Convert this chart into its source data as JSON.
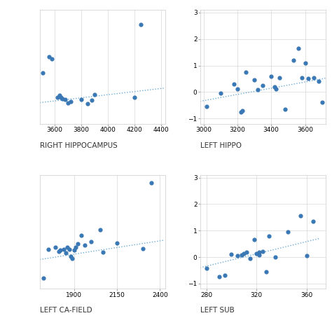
{
  "top_left": {
    "xlabel": "RIGHT HIPPOCAMPUS",
    "scatter_x": [
      3510,
      3560,
      3580,
      3620,
      3640,
      3650,
      3660,
      3680,
      3700,
      3720,
      3800,
      3850,
      3900,
      3880,
      4200,
      4250
    ],
    "scatter_y": [
      1.15,
      1.55,
      1.5,
      0.55,
      0.6,
      0.55,
      0.52,
      0.5,
      0.42,
      0.45,
      0.5,
      0.4,
      0.62,
      0.48,
      0.55,
      2.35
    ],
    "trend_x": [
      3490,
      4430
    ],
    "trend_y": [
      0.42,
      0.78
    ],
    "xlim": [
      3490,
      4430
    ],
    "xticks": [
      3600,
      3800,
      4000,
      4200,
      4400
    ],
    "ylim": [
      -0.1,
      2.7
    ],
    "yticks": []
  },
  "top_right": {
    "xlabel": "LEFT HIPPO",
    "scatter_x": [
      3020,
      3100,
      3180,
      3200,
      3220,
      3230,
      3250,
      3300,
      3320,
      3350,
      3400,
      3420,
      3430,
      3450,
      3480,
      3530,
      3560,
      3580,
      3600,
      3620,
      3650,
      3680,
      3700
    ],
    "scatter_y": [
      -0.55,
      -0.05,
      0.3,
      0.12,
      -0.75,
      -0.7,
      0.75,
      0.45,
      0.1,
      0.25,
      0.6,
      0.2,
      0.12,
      0.55,
      -0.65,
      1.2,
      1.65,
      0.55,
      1.1,
      0.5,
      0.55,
      0.42,
      -0.4
    ],
    "trend_x": [
      2980,
      3720
    ],
    "trend_y": [
      -0.35,
      0.52
    ],
    "xlim": [
      2980,
      3720
    ],
    "xticks": [
      3000,
      3200,
      3400,
      3600
    ],
    "ylim": [
      -1.2,
      3.1
    ],
    "yticks": [
      -1.0,
      0.0,
      1.0,
      2.0,
      3.0
    ]
  },
  "bottom_left": {
    "xlabel": "LEFT CA-FIELD",
    "scatter_x": [
      1720,
      1750,
      1790,
      1810,
      1820,
      1840,
      1850,
      1860,
      1870,
      1880,
      1890,
      1900,
      1910,
      1920,
      1940,
      1960,
      2000,
      2050,
      2070,
      2150,
      2300,
      2350
    ],
    "scatter_y": [
      -0.55,
      0.42,
      0.48,
      0.35,
      0.4,
      0.42,
      0.3,
      0.5,
      0.42,
      0.18,
      0.12,
      0.4,
      0.5,
      0.6,
      0.88,
      0.55,
      0.68,
      1.08,
      0.32,
      0.62,
      0.45,
      2.65
    ],
    "trend_x": [
      1700,
      2420
    ],
    "trend_y": [
      0.08,
      0.72
    ],
    "xlim": [
      1700,
      2430
    ],
    "xticks": [
      1900,
      2150,
      2400
    ],
    "ylim": [
      -0.9,
      2.9
    ],
    "yticks": []
  },
  "bottom_right": {
    "xlabel": "LEFT SUB",
    "scatter_x": [
      280,
      290,
      295,
      300,
      305,
      308,
      310,
      312,
      315,
      318,
      320,
      322,
      322,
      325,
      328,
      330,
      335,
      345,
      355,
      360,
      365
    ],
    "scatter_y": [
      -0.42,
      -0.75,
      -0.68,
      0.1,
      0.05,
      0.08,
      0.12,
      0.18,
      -0.05,
      0.65,
      0.12,
      0.08,
      0.18,
      0.2,
      -0.55,
      0.8,
      0.0,
      0.95,
      1.55,
      0.05,
      1.35
    ],
    "trend_x": [
      275,
      370
    ],
    "trend_y": [
      -0.4,
      0.7
    ],
    "xlim": [
      275,
      375
    ],
    "xticks": [
      280,
      320,
      360
    ],
    "ylim": [
      -1.2,
      3.1
    ],
    "yticks": [
      -1.0,
      0.0,
      1.0,
      2.0,
      3.0
    ]
  },
  "dot_color": "#3a78b5",
  "line_color": "#6aaad4",
  "bg_color": "#ffffff",
  "grid_color": "#d8d8d8",
  "label_fontsize": 7.5,
  "tick_fontsize": 6.5,
  "dot_size": 12
}
